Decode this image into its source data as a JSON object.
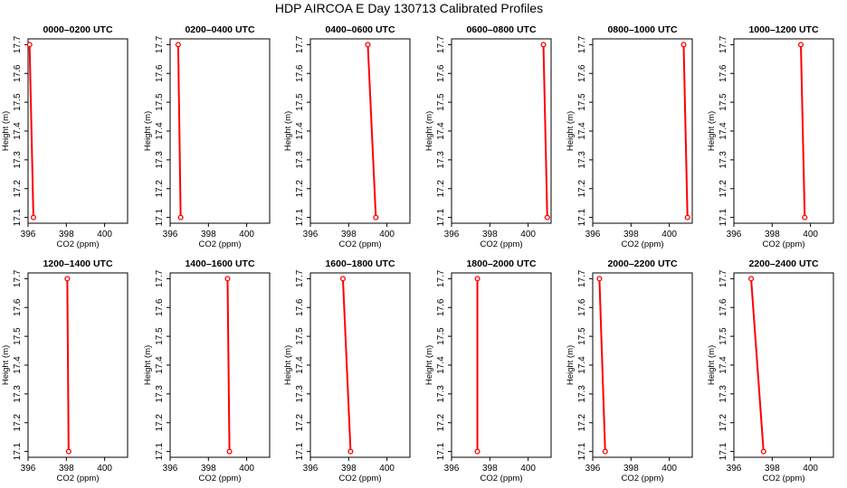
{
  "figure_title": "HDP AIRCOA E  Day 130713  Calibrated Profiles",
  "chart_data": [
    {
      "type": "line",
      "title": "0000–0200 UTC",
      "xlabel": "CO2 (ppm)",
      "ylabel": "Height (m)",
      "xlim": [
        396,
        401.2
      ],
      "ylim": [
        17.08,
        17.72
      ],
      "xticks": [
        "396",
        "398",
        "400"
      ],
      "yticks": [
        "17.1",
        "17.2",
        "17.3",
        "17.4",
        "17.5",
        "17.6",
        "17.7"
      ],
      "series": [
        {
          "x": [
            396.28,
            396.08
          ],
          "y": [
            17.1,
            17.7
          ],
          "color": "#ff0000"
        }
      ]
    },
    {
      "type": "line",
      "title": "0200–0400 UTC",
      "xlabel": "CO2 (ppm)",
      "ylabel": "Height (m)",
      "xlim": [
        396,
        401.2
      ],
      "ylim": [
        17.08,
        17.72
      ],
      "xticks": [
        "396",
        "398",
        "400"
      ],
      "yticks": [
        "17.1",
        "17.2",
        "17.3",
        "17.4",
        "17.5",
        "17.6",
        "17.7"
      ],
      "series": [
        {
          "x": [
            396.55,
            396.42
          ],
          "y": [
            17.1,
            17.7
          ],
          "color": "#ff0000"
        }
      ]
    },
    {
      "type": "line",
      "title": "0400–0600 UTC",
      "xlabel": "CO2 (ppm)",
      "ylabel": "Height (m)",
      "xlim": [
        396,
        401.2
      ],
      "ylim": [
        17.08,
        17.72
      ],
      "xticks": [
        "396",
        "398",
        "400"
      ],
      "yticks": [
        "17.1",
        "17.2",
        "17.3",
        "17.4",
        "17.5",
        "17.6",
        "17.7"
      ],
      "series": [
        {
          "x": [
            399.42,
            399.0
          ],
          "y": [
            17.1,
            17.7
          ],
          "color": "#ff0000"
        }
      ]
    },
    {
      "type": "line",
      "title": "0600–0800 UTC",
      "xlabel": "CO2 (ppm)",
      "ylabel": "Height (m)",
      "xlim": [
        396,
        401.2
      ],
      "ylim": [
        17.08,
        17.72
      ],
      "xticks": [
        "396",
        "398",
        "400"
      ],
      "yticks": [
        "17.1",
        "17.2",
        "17.3",
        "17.4",
        "17.5",
        "17.6",
        "17.7"
      ],
      "series": [
        {
          "x": [
            401.0,
            400.8
          ],
          "y": [
            17.1,
            17.7
          ],
          "color": "#ff0000"
        }
      ]
    },
    {
      "type": "line",
      "title": "0800–1000 UTC",
      "xlabel": "CO2 (ppm)",
      "ylabel": "Height (m)",
      "xlim": [
        396,
        401.2
      ],
      "ylim": [
        17.08,
        17.72
      ],
      "xticks": [
        "396",
        "398",
        "400"
      ],
      "yticks": [
        "17.1",
        "17.2",
        "17.3",
        "17.4",
        "17.5",
        "17.6",
        "17.7"
      ],
      "series": [
        {
          "x": [
            400.95,
            400.75
          ],
          "y": [
            17.1,
            17.7
          ],
          "color": "#ff0000"
        }
      ]
    },
    {
      "type": "line",
      "title": "1000–1200 UTC",
      "xlabel": "CO2 (ppm)",
      "ylabel": "Height (m)",
      "xlim": [
        396,
        401.2
      ],
      "ylim": [
        17.08,
        17.72
      ],
      "xticks": [
        "396",
        "398",
        "400"
      ],
      "yticks": [
        "17.1",
        "17.2",
        "17.3",
        "17.4",
        "17.5",
        "17.6",
        "17.7"
      ],
      "series": [
        {
          "x": [
            399.7,
            399.5
          ],
          "y": [
            17.1,
            17.7
          ],
          "color": "#ff0000"
        }
      ]
    },
    {
      "type": "line",
      "title": "1200–1400 UTC",
      "xlabel": "CO2 (ppm)",
      "ylabel": "Height (m)",
      "xlim": [
        396,
        401.2
      ],
      "ylim": [
        17.08,
        17.72
      ],
      "xticks": [
        "396",
        "398",
        "400"
      ],
      "yticks": [
        "17.1",
        "17.2",
        "17.3",
        "17.4",
        "17.5",
        "17.6",
        "17.7"
      ],
      "series": [
        {
          "x": [
            398.12,
            398.05
          ],
          "y": [
            17.1,
            17.7
          ],
          "color": "#ff0000"
        }
      ]
    },
    {
      "type": "line",
      "title": "1400–1600 UTC",
      "xlabel": "CO2 (ppm)",
      "ylabel": "Height (m)",
      "xlim": [
        396,
        401.2
      ],
      "ylim": [
        17.08,
        17.72
      ],
      "xticks": [
        "396",
        "398",
        "400"
      ],
      "yticks": [
        "17.1",
        "17.2",
        "17.3",
        "17.4",
        "17.5",
        "17.6",
        "17.7"
      ],
      "series": [
        {
          "x": [
            399.1,
            399.0
          ],
          "y": [
            17.1,
            17.7
          ],
          "color": "#ff0000"
        }
      ]
    },
    {
      "type": "line",
      "title": "1600–1800 UTC",
      "xlabel": "CO2 (ppm)",
      "ylabel": "Height (m)",
      "xlim": [
        396,
        401.2
      ],
      "ylim": [
        17.08,
        17.72
      ],
      "xticks": [
        "396",
        "398",
        "400"
      ],
      "yticks": [
        "17.1",
        "17.2",
        "17.3",
        "17.4",
        "17.5",
        "17.6",
        "17.7"
      ],
      "series": [
        {
          "x": [
            398.1,
            397.7
          ],
          "y": [
            17.1,
            17.7
          ],
          "color": "#ff0000"
        }
      ]
    },
    {
      "type": "line",
      "title": "1800–2000 UTC",
      "xlabel": "CO2 (ppm)",
      "ylabel": "Height (m)",
      "xlim": [
        396,
        401.2
      ],
      "ylim": [
        17.08,
        17.72
      ],
      "xticks": [
        "396",
        "398",
        "400"
      ],
      "yticks": [
        "17.1",
        "17.2",
        "17.3",
        "17.4",
        "17.5",
        "17.6",
        "17.7"
      ],
      "series": [
        {
          "x": [
            397.35,
            397.35
          ],
          "y": [
            17.1,
            17.7
          ],
          "color": "#ff0000"
        }
      ]
    },
    {
      "type": "line",
      "title": "2000–2200 UTC",
      "xlabel": "CO2 (ppm)",
      "ylabel": "Height (m)",
      "xlim": [
        396,
        401.2
      ],
      "ylim": [
        17.08,
        17.72
      ],
      "xticks": [
        "396",
        "398",
        "400"
      ],
      "yticks": [
        "17.1",
        "17.2",
        "17.3",
        "17.4",
        "17.5",
        "17.6",
        "17.7"
      ],
      "series": [
        {
          "x": [
            396.65,
            396.35
          ],
          "y": [
            17.1,
            17.7
          ],
          "color": "#ff0000"
        }
      ]
    },
    {
      "type": "line",
      "title": "2200–2400 UTC",
      "xlabel": "CO2 (ppm)",
      "ylabel": "Height (m)",
      "xlim": [
        396,
        401.2
      ],
      "ylim": [
        17.08,
        17.72
      ],
      "xticks": [
        "396",
        "398",
        "400"
      ],
      "yticks": [
        "17.1",
        "17.2",
        "17.3",
        "17.4",
        "17.5",
        "17.6",
        "17.7"
      ],
      "series": [
        {
          "x": [
            397.55,
            396.9
          ],
          "y": [
            17.1,
            17.7
          ],
          "color": "#ff0000"
        }
      ]
    }
  ]
}
